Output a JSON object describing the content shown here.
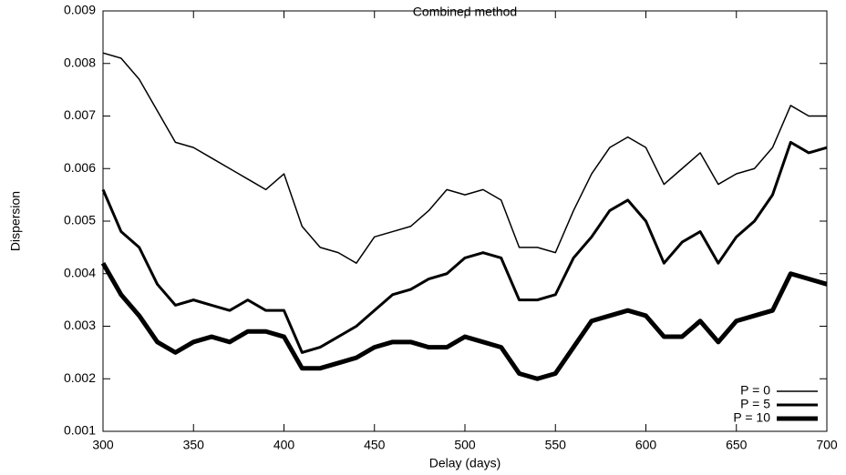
{
  "chart_data": {
    "type": "line",
    "title": "Combined method",
    "xlabel": "Delay (days)",
    "ylabel": "Dispersion",
    "x": [
      300,
      310,
      320,
      330,
      340,
      350,
      360,
      370,
      380,
      390,
      400,
      410,
      420,
      430,
      440,
      450,
      460,
      470,
      480,
      490,
      500,
      510,
      520,
      530,
      540,
      550,
      560,
      570,
      580,
      590,
      600,
      610,
      620,
      630,
      640,
      650,
      660,
      670,
      680,
      690,
      700
    ],
    "series": [
      {
        "name": "P = 0",
        "color": "#000000",
        "width": 1.5,
        "values": [
          0.0082,
          0.0081,
          0.0077,
          0.0071,
          0.0065,
          0.0064,
          0.0062,
          0.006,
          0.0058,
          0.0056,
          0.0059,
          0.0049,
          0.0045,
          0.0044,
          0.0042,
          0.0047,
          0.0048,
          0.0049,
          0.0052,
          0.0056,
          0.0055,
          0.0056,
          0.0054,
          0.0045,
          0.0045,
          0.0044,
          0.0052,
          0.0059,
          0.0064,
          0.0066,
          0.0064,
          0.0057,
          0.006,
          0.0063,
          0.0057,
          0.0059,
          0.006,
          0.0064,
          0.0072,
          0.007,
          0.007
        ]
      },
      {
        "name": "P = 5",
        "color": "#000000",
        "width": 3,
        "values": [
          0.0056,
          0.0048,
          0.0045,
          0.0038,
          0.0034,
          0.0035,
          0.0034,
          0.0033,
          0.0035,
          0.0033,
          0.0033,
          0.0025,
          0.0026,
          0.0028,
          0.003,
          0.0033,
          0.0036,
          0.0037,
          0.0039,
          0.004,
          0.0043,
          0.0044,
          0.0043,
          0.0035,
          0.0035,
          0.0036,
          0.0043,
          0.0047,
          0.0052,
          0.0054,
          0.005,
          0.0042,
          0.0046,
          0.0048,
          0.0042,
          0.0047,
          0.005,
          0.0055,
          0.0065,
          0.0063,
          0.0064
        ]
      },
      {
        "name": "P = 10",
        "color": "#000000",
        "width": 5,
        "values": [
          0.0042,
          0.0036,
          0.0032,
          0.0027,
          0.0025,
          0.0027,
          0.0028,
          0.0027,
          0.0029,
          0.0029,
          0.0028,
          0.0022,
          0.0022,
          0.0023,
          0.0024,
          0.0026,
          0.0027,
          0.0027,
          0.0026,
          0.0026,
          0.0028,
          0.0027,
          0.0026,
          0.0021,
          0.002,
          0.0021,
          0.0026,
          0.0031,
          0.0032,
          0.0033,
          0.0032,
          0.0028,
          0.0028,
          0.0031,
          0.0027,
          0.0031,
          0.0032,
          0.0033,
          0.004,
          0.0039,
          0.0038
        ]
      }
    ],
    "xlim": [
      300,
      700
    ],
    "xticks": [
      300,
      350,
      400,
      450,
      500,
      550,
      600,
      650,
      700
    ],
    "ylim": [
      0.001,
      0.009
    ],
    "yticks": [
      0.001,
      0.002,
      0.003,
      0.004,
      0.005,
      0.006,
      0.007,
      0.008,
      0.009
    ],
    "legend": "lower right"
  }
}
